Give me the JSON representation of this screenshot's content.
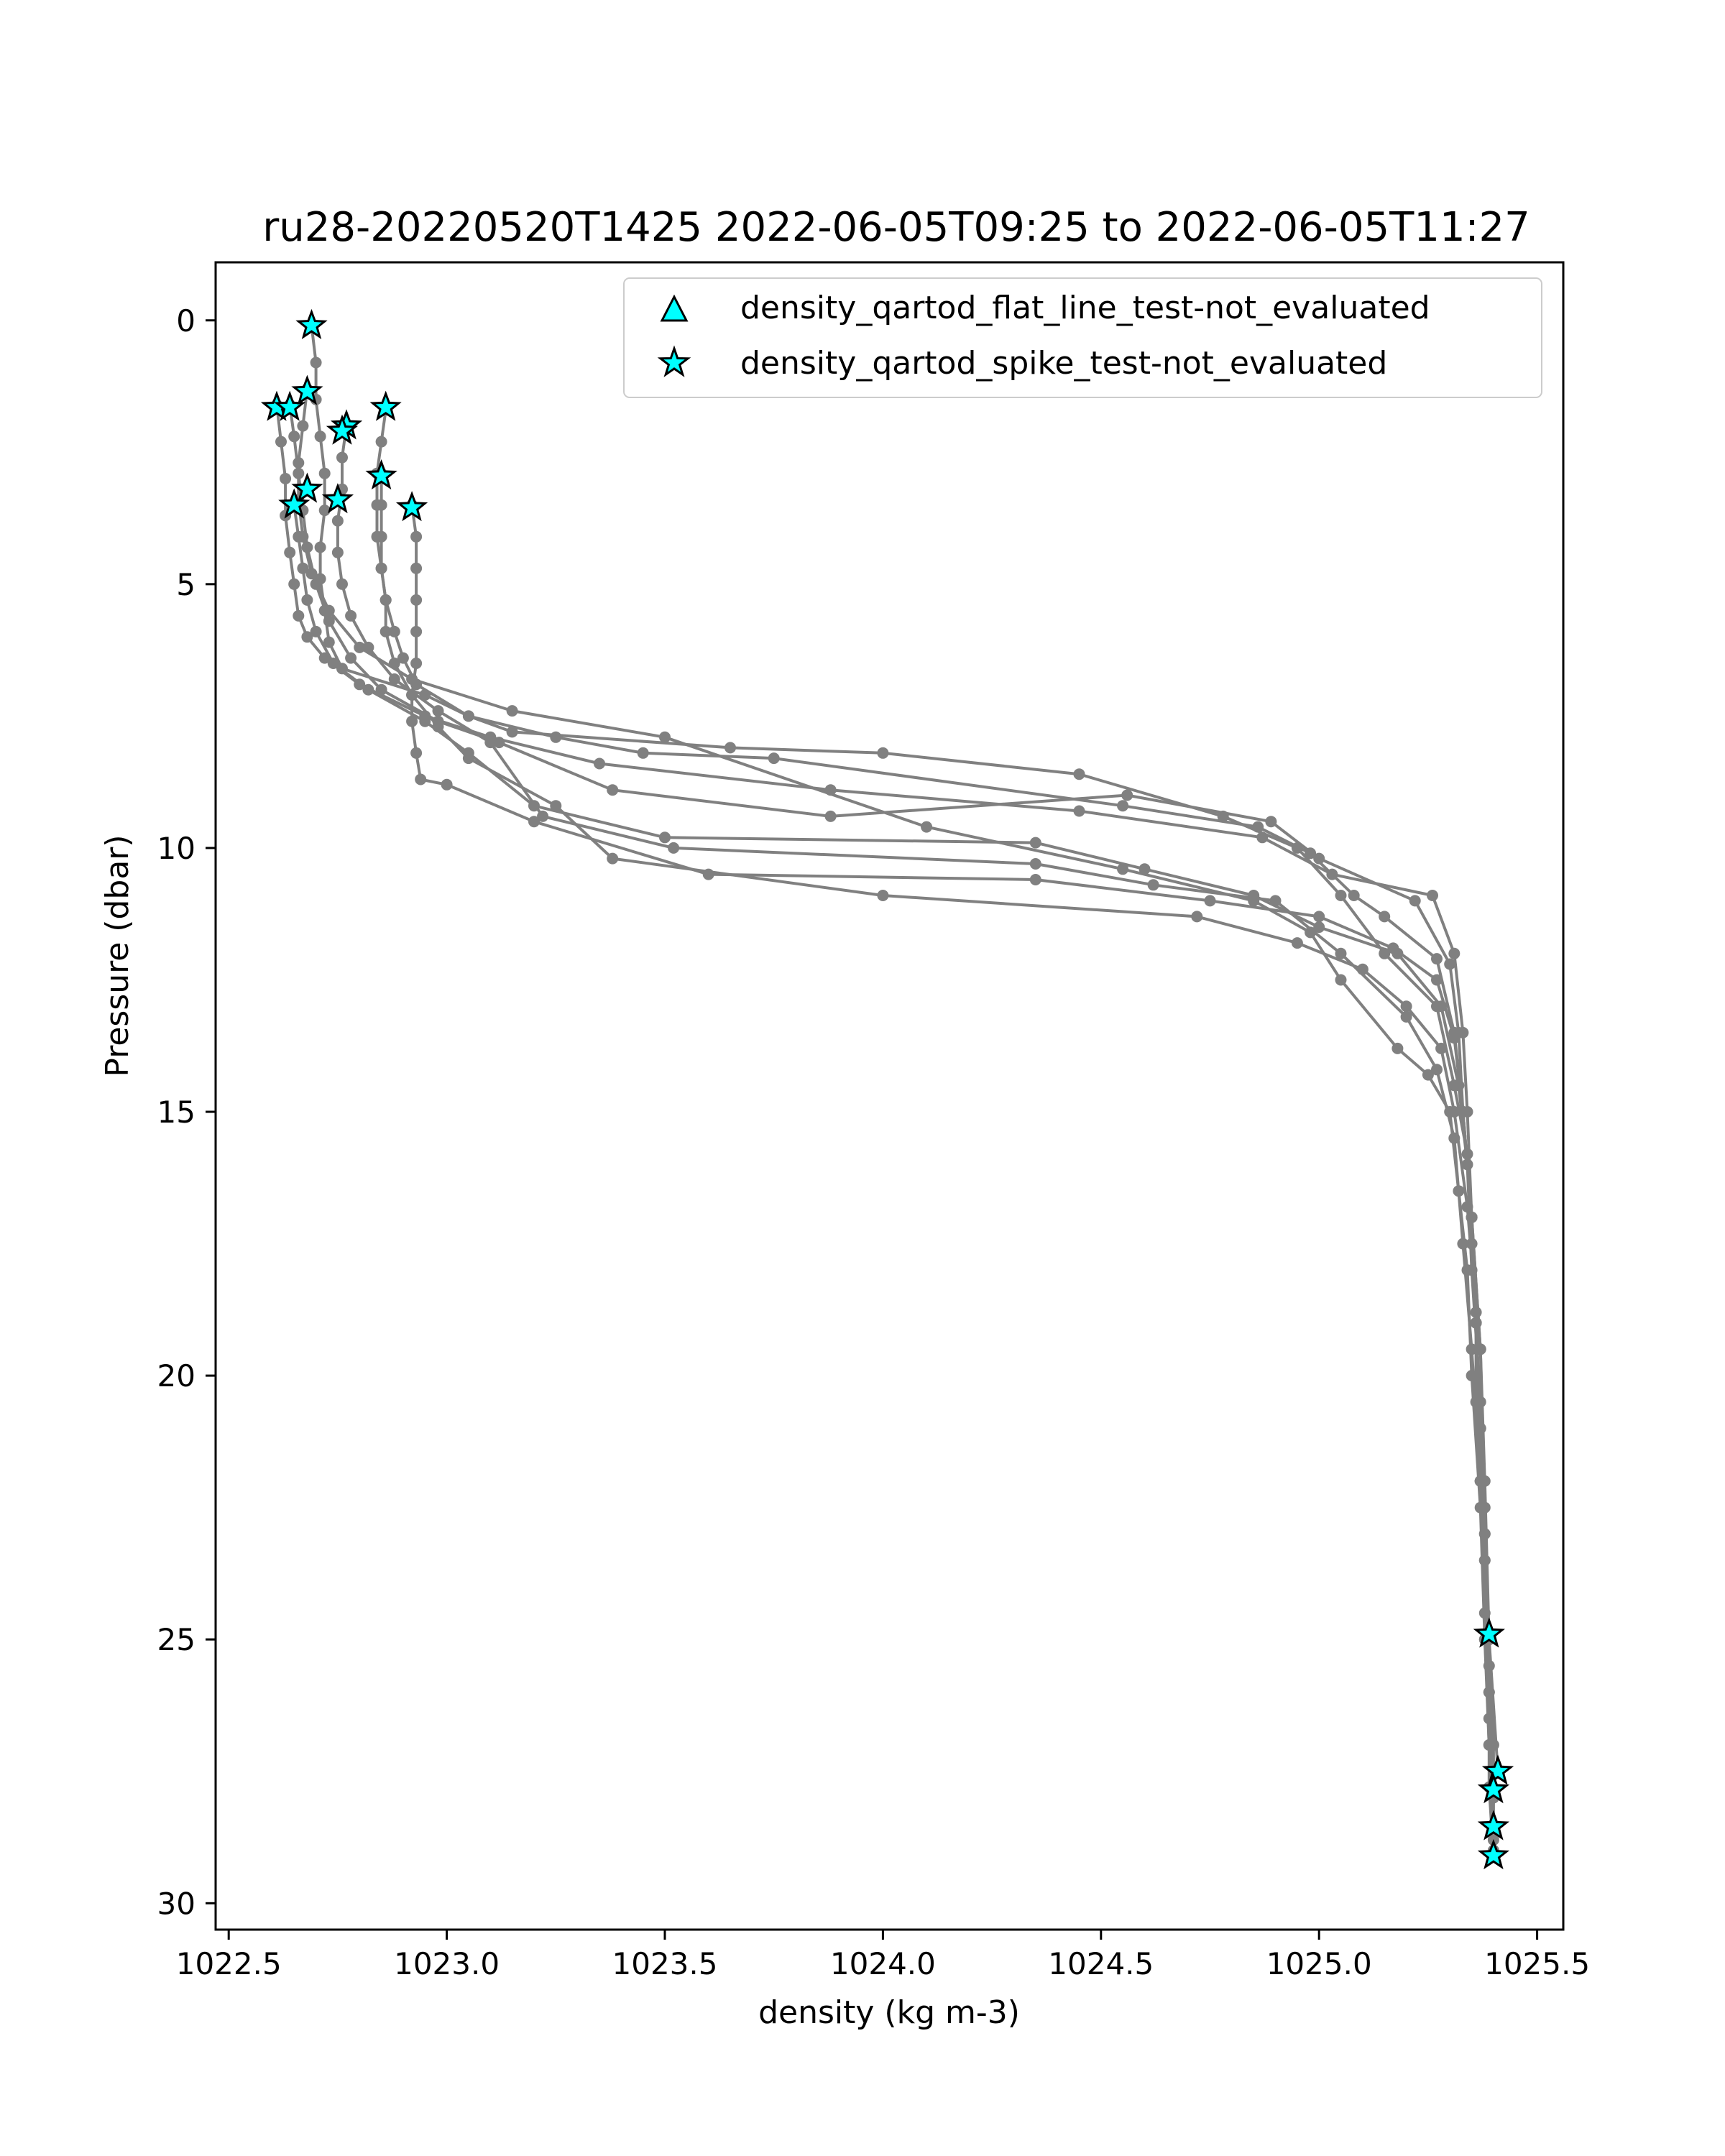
{
  "chart_data": {
    "type": "line",
    "title": "ru28-20220520T1425 2022-06-05T09:25 to 2022-06-05T11:27",
    "xlabel": "density (kg m-3)",
    "ylabel": "Pressure (dbar)",
    "xlim": [
      1022.47,
      1025.56
    ],
    "ylim": [
      30.5,
      -1.1
    ],
    "y_inverted": true,
    "xticks": [
      "1022.5",
      "1023.0",
      "1023.5",
      "1024.0",
      "1024.5",
      "1025.0",
      "1025.5"
    ],
    "yticks": [
      "0",
      "5",
      "10",
      "15",
      "20",
      "25",
      "30"
    ],
    "grid": false,
    "legend_position": "upper right",
    "line_color": "#808080",
    "marker_color": "#00ffff",
    "legend": [
      {
        "label": "density_qartod_flat_line_test-not_evaluated",
        "marker": "triangle"
      },
      {
        "label": "density_qartod_spike_test-not_evaluated",
        "marker": "star"
      }
    ],
    "series": [
      {
        "x": [
          1022.69,
          1022.7,
          1022.7,
          1022.71,
          1022.72,
          1022.72,
          1022.71,
          1022.71,
          1022.72,
          1022.73,
          1022.76,
          1022.95,
          1023.05,
          1023.15,
          1023.65,
          1024.0,
          1024.45,
          1024.78,
          1024.95,
          1025.05,
          1025.15,
          1025.27,
          1025.31,
          1025.34,
          1025.35,
          1025.36,
          1025.36,
          1025.37,
          1025.38,
          1025.38,
          1025.39,
          1025.39,
          1025.4
        ],
        "y": [
          0.1,
          0.8,
          1.5,
          2.2,
          2.9,
          3.6,
          4.3,
          4.9,
          5.5,
          6.1,
          6.6,
          7.1,
          7.5,
          7.8,
          8.1,
          8.2,
          8.6,
          9.4,
          10.0,
          10.9,
          12.0,
          13.0,
          14.5,
          15.8,
          17.5,
          19.0,
          20.5,
          22.0,
          23.5,
          25.0,
          26.5,
          27.8,
          29.1
        ]
      },
      {
        "x": [
          1022.61,
          1022.62,
          1022.63,
          1022.63,
          1022.64,
          1022.65,
          1022.66,
          1022.68,
          1022.72,
          1022.8,
          1022.95,
          1023.1,
          1023.35,
          1023.88,
          1024.45,
          1024.87,
          1025.03,
          1025.26,
          1025.31,
          1025.33,
          1025.34,
          1025.35,
          1025.36,
          1025.37,
          1025.38,
          1025.39,
          1025.4,
          1025.4
        ],
        "y": [
          1.6,
          2.3,
          3.0,
          3.7,
          4.4,
          5.0,
          5.6,
          6.0,
          6.4,
          6.9,
          7.5,
          7.9,
          8.4,
          8.9,
          9.3,
          9.8,
          10.5,
          10.9,
          12.0,
          13.5,
          15.0,
          17.0,
          19.0,
          21.0,
          23.0,
          25.0,
          27.0,
          28.6
        ]
      },
      {
        "x": [
          1022.64,
          1022.65,
          1022.66,
          1022.67,
          1022.68,
          1022.7,
          1022.73,
          1022.78,
          1022.85,
          1022.98,
          1023.12,
          1023.38,
          1023.88,
          1024.56,
          1024.89,
          1025.0,
          1025.22,
          1025.3,
          1025.32,
          1025.33,
          1025.35,
          1025.36,
          1025.37,
          1025.39,
          1025.41
        ],
        "y": [
          1.6,
          2.2,
          2.9,
          3.6,
          4.3,
          5.0,
          5.7,
          6.4,
          7.0,
          7.6,
          8.0,
          8.9,
          9.4,
          9.0,
          9.5,
          10.2,
          11.0,
          12.2,
          13.5,
          15.0,
          17.0,
          19.0,
          22.0,
          25.0,
          27.5
        ]
      },
      {
        "x": [
          1022.68,
          1022.67,
          1022.66,
          1022.66,
          1022.67,
          1022.69,
          1022.73,
          1022.8,
          1022.92,
          1023.15,
          1023.5,
          1024.1,
          1024.55,
          1024.85,
          1024.98,
          1025.05,
          1025.18,
          1025.25,
          1025.3,
          1025.32,
          1025.34,
          1025.35,
          1025.37,
          1025.38,
          1025.39,
          1025.4
        ],
        "y": [
          1.3,
          2.0,
          2.7,
          3.4,
          4.1,
          4.8,
          5.5,
          6.2,
          6.8,
          7.4,
          7.9,
          9.6,
          10.4,
          11.0,
          11.6,
          12.5,
          13.8,
          14.3,
          15.0,
          16.5,
          18.0,
          20.0,
          22.5,
          25.0,
          27.0,
          29.0
        ]
      },
      {
        "x": [
          1022.65,
          1022.66,
          1022.67,
          1022.68,
          1022.7,
          1022.74,
          1022.82,
          1022.95,
          1023.05,
          1023.2,
          1023.5,
          1024.35,
          1024.6,
          1024.85,
          1025.0,
          1025.18,
          1025.28,
          1025.32,
          1025.34,
          1025.35,
          1025.37,
          1025.38,
          1025.39,
          1025.4
        ],
        "y": [
          3.5,
          4.1,
          4.7,
          5.3,
          5.9,
          6.5,
          7.0,
          7.6,
          8.2,
          9.2,
          9.8,
          9.9,
          10.4,
          10.9,
          11.5,
          12.0,
          13.0,
          14.5,
          16.0,
          18.0,
          20.5,
          23.0,
          26.0,
          28.6
        ]
      },
      {
        "x": [
          1022.77,
          1022.76,
          1022.76,
          1022.75,
          1022.75,
          1022.76,
          1022.78,
          1022.82,
          1022.88,
          1022.98,
          1023.1,
          1023.22,
          1023.52,
          1024.35,
          1024.62,
          1024.9,
          1025.05,
          1025.2,
          1025.27,
          1025.31,
          1025.33,
          1025.35,
          1025.37,
          1025.38,
          1025.39,
          1025.4
        ],
        "y": [
          2.0,
          2.6,
          3.2,
          3.8,
          4.4,
          5.0,
          5.6,
          6.2,
          6.8,
          7.4,
          8.0,
          9.4,
          10.0,
          10.3,
          10.7,
          11.0,
          12.0,
          13.2,
          14.2,
          15.5,
          17.5,
          19.5,
          22.0,
          24.5,
          27.0,
          29.0
        ]
      },
      {
        "x": [
          1022.85,
          1022.85,
          1022.85,
          1022.85,
          1022.86,
          1022.86,
          1022.88,
          1022.92,
          1022.98,
          1023.05,
          1023.25,
          1023.38,
          1024.0,
          1024.72,
          1024.95,
          1025.1,
          1025.2,
          1025.28,
          1025.31,
          1025.34,
          1025.36,
          1025.37,
          1025.38,
          1025.39,
          1025.4
        ],
        "y": [
          2.9,
          3.5,
          4.1,
          4.7,
          5.3,
          5.9,
          6.5,
          7.1,
          7.7,
          8.3,
          9.2,
          10.2,
          10.9,
          11.3,
          11.8,
          12.3,
          13.0,
          13.8,
          15.0,
          16.8,
          18.8,
          21.0,
          23.5,
          26.0,
          28.8
        ]
      },
      {
        "x": [
          1022.92,
          1022.93,
          1022.93,
          1022.93,
          1022.93,
          1022.93,
          1022.92,
          1022.92,
          1022.93,
          1022.94,
          1023.0,
          1023.2,
          1023.6,
          1024.35,
          1024.75,
          1025.0,
          1025.17,
          1025.27,
          1025.31,
          1025.33,
          1025.35,
          1025.37,
          1025.38,
          1025.39,
          1025.4
        ],
        "y": [
          3.5,
          4.1,
          4.7,
          5.3,
          5.9,
          6.5,
          7.1,
          7.6,
          8.2,
          8.7,
          8.8,
          9.5,
          10.5,
          10.6,
          11.0,
          11.3,
          11.9,
          12.5,
          13.6,
          15.0,
          17.0,
          19.5,
          22.5,
          25.5,
          28.0
        ]
      },
      {
        "x": [
          1022.86,
          1022.85,
          1022.84,
          1022.84,
          1022.84,
          1022.85,
          1022.86,
          1022.88,
          1022.9,
          1022.93,
          1023.05,
          1023.25,
          1023.45,
          1023.75,
          1024.55,
          1024.86,
          1024.98,
          1025.08,
          1025.15,
          1025.27,
          1025.31,
          1025.33,
          1025.35,
          1025.37,
          1025.38,
          1025.39,
          1025.4
        ],
        "y": [
          1.7,
          2.3,
          2.9,
          3.5,
          4.1,
          4.7,
          5.3,
          5.9,
          6.4,
          6.9,
          7.5,
          7.9,
          8.2,
          8.3,
          9.2,
          9.6,
          10.1,
          10.9,
          11.3,
          12.1,
          13.5,
          15.0,
          17.0,
          19.5,
          22.0,
          25.0,
          28.0
        ]
      }
    ],
    "spike_markers": {
      "x": [
        1022.69,
        1022.61,
        1022.64,
        1022.68,
        1022.77,
        1022.76,
        1022.86,
        1022.68,
        1022.65,
        1022.75,
        1022.85,
        1022.92,
        1025.39,
        1025.41,
        1025.4,
        1025.4,
        1025.4
      ],
      "y": [
        0.1,
        1.65,
        1.65,
        1.35,
        2.0,
        2.1,
        1.65,
        3.2,
        3.5,
        3.4,
        2.95,
        3.55,
        24.9,
        27.5,
        27.85,
        28.55,
        29.1
      ]
    }
  }
}
